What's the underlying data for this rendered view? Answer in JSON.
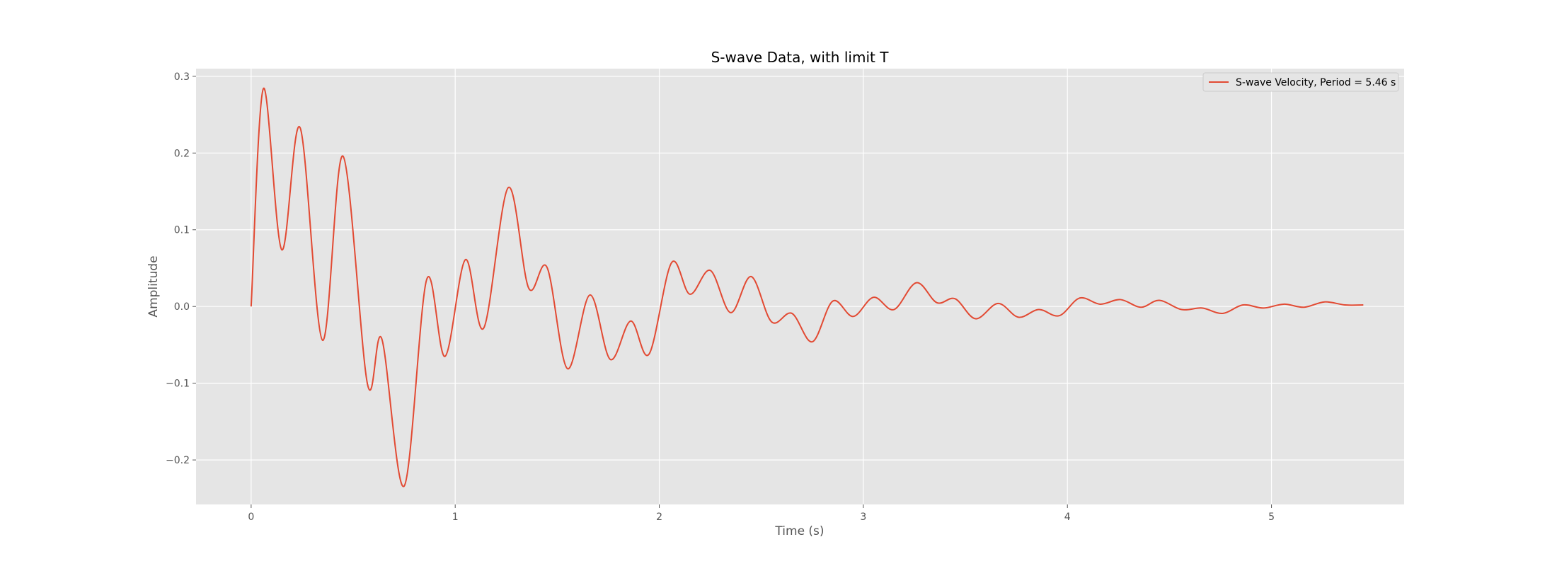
{
  "chart_data": {
    "type": "line",
    "title": "S-wave Data, with limit T",
    "xlabel": "Time (s)",
    "ylabel": "Amplitude",
    "xlim": [
      -0.27,
      5.65
    ],
    "ylim": [
      -0.258,
      0.31
    ],
    "xticks": [
      0,
      1,
      2,
      3,
      4,
      5
    ],
    "yticks": [
      -0.2,
      -0.1,
      0.0,
      0.1,
      0.2,
      0.3
    ],
    "xtick_labels": [
      "0",
      "1",
      "2",
      "3",
      "4",
      "5"
    ],
    "ytick_labels": [
      "−0.2",
      "−0.1",
      "0.0",
      "0.1",
      "0.2",
      "0.3"
    ],
    "grid": true,
    "legend_position": "top-right",
    "colors": {
      "background": "#e5e5e5",
      "grid": "#ffffff",
      "series": "#e24a33"
    },
    "series": [
      {
        "name": "S-wave Velocity, Period = 5.46 s",
        "color": "#e24a33",
        "x": [
          0.0,
          0.06,
          0.15,
          0.24,
          0.35,
          0.45,
          0.57,
          0.64,
          0.75,
          0.86,
          0.95,
          1.05,
          1.14,
          1.26,
          1.36,
          1.45,
          1.55,
          1.66,
          1.76,
          1.86,
          1.95,
          2.06,
          2.15,
          2.25,
          2.35,
          2.45,
          2.55,
          2.65,
          2.75,
          2.85,
          2.95,
          3.05,
          3.15,
          3.26,
          3.36,
          3.45,
          3.55,
          3.66,
          3.76,
          3.86,
          3.96,
          4.06,
          4.16,
          4.26,
          4.36,
          4.45,
          4.56,
          4.66,
          4.76,
          4.86,
          4.96,
          5.06,
          5.16,
          5.26,
          5.36,
          5.45
        ],
        "y": [
          0.0,
          0.284,
          0.074,
          0.233,
          -0.044,
          0.196,
          -0.101,
          -0.042,
          -0.234,
          0.035,
          -0.065,
          0.061,
          -0.028,
          0.155,
          0.024,
          0.051,
          -0.081,
          0.015,
          -0.069,
          -0.019,
          -0.062,
          0.057,
          0.016,
          0.047,
          -0.008,
          0.039,
          -0.02,
          -0.009,
          -0.046,
          0.007,
          -0.013,
          0.012,
          -0.004,
          0.031,
          0.005,
          0.01,
          -0.016,
          0.004,
          -0.014,
          -0.004,
          -0.012,
          0.011,
          0.003,
          0.009,
          -0.001,
          0.008,
          -0.004,
          -0.002,
          -0.009,
          0.002,
          -0.002,
          0.003,
          -0.001,
          0.006,
          0.002,
          0.002
        ]
      }
    ]
  }
}
